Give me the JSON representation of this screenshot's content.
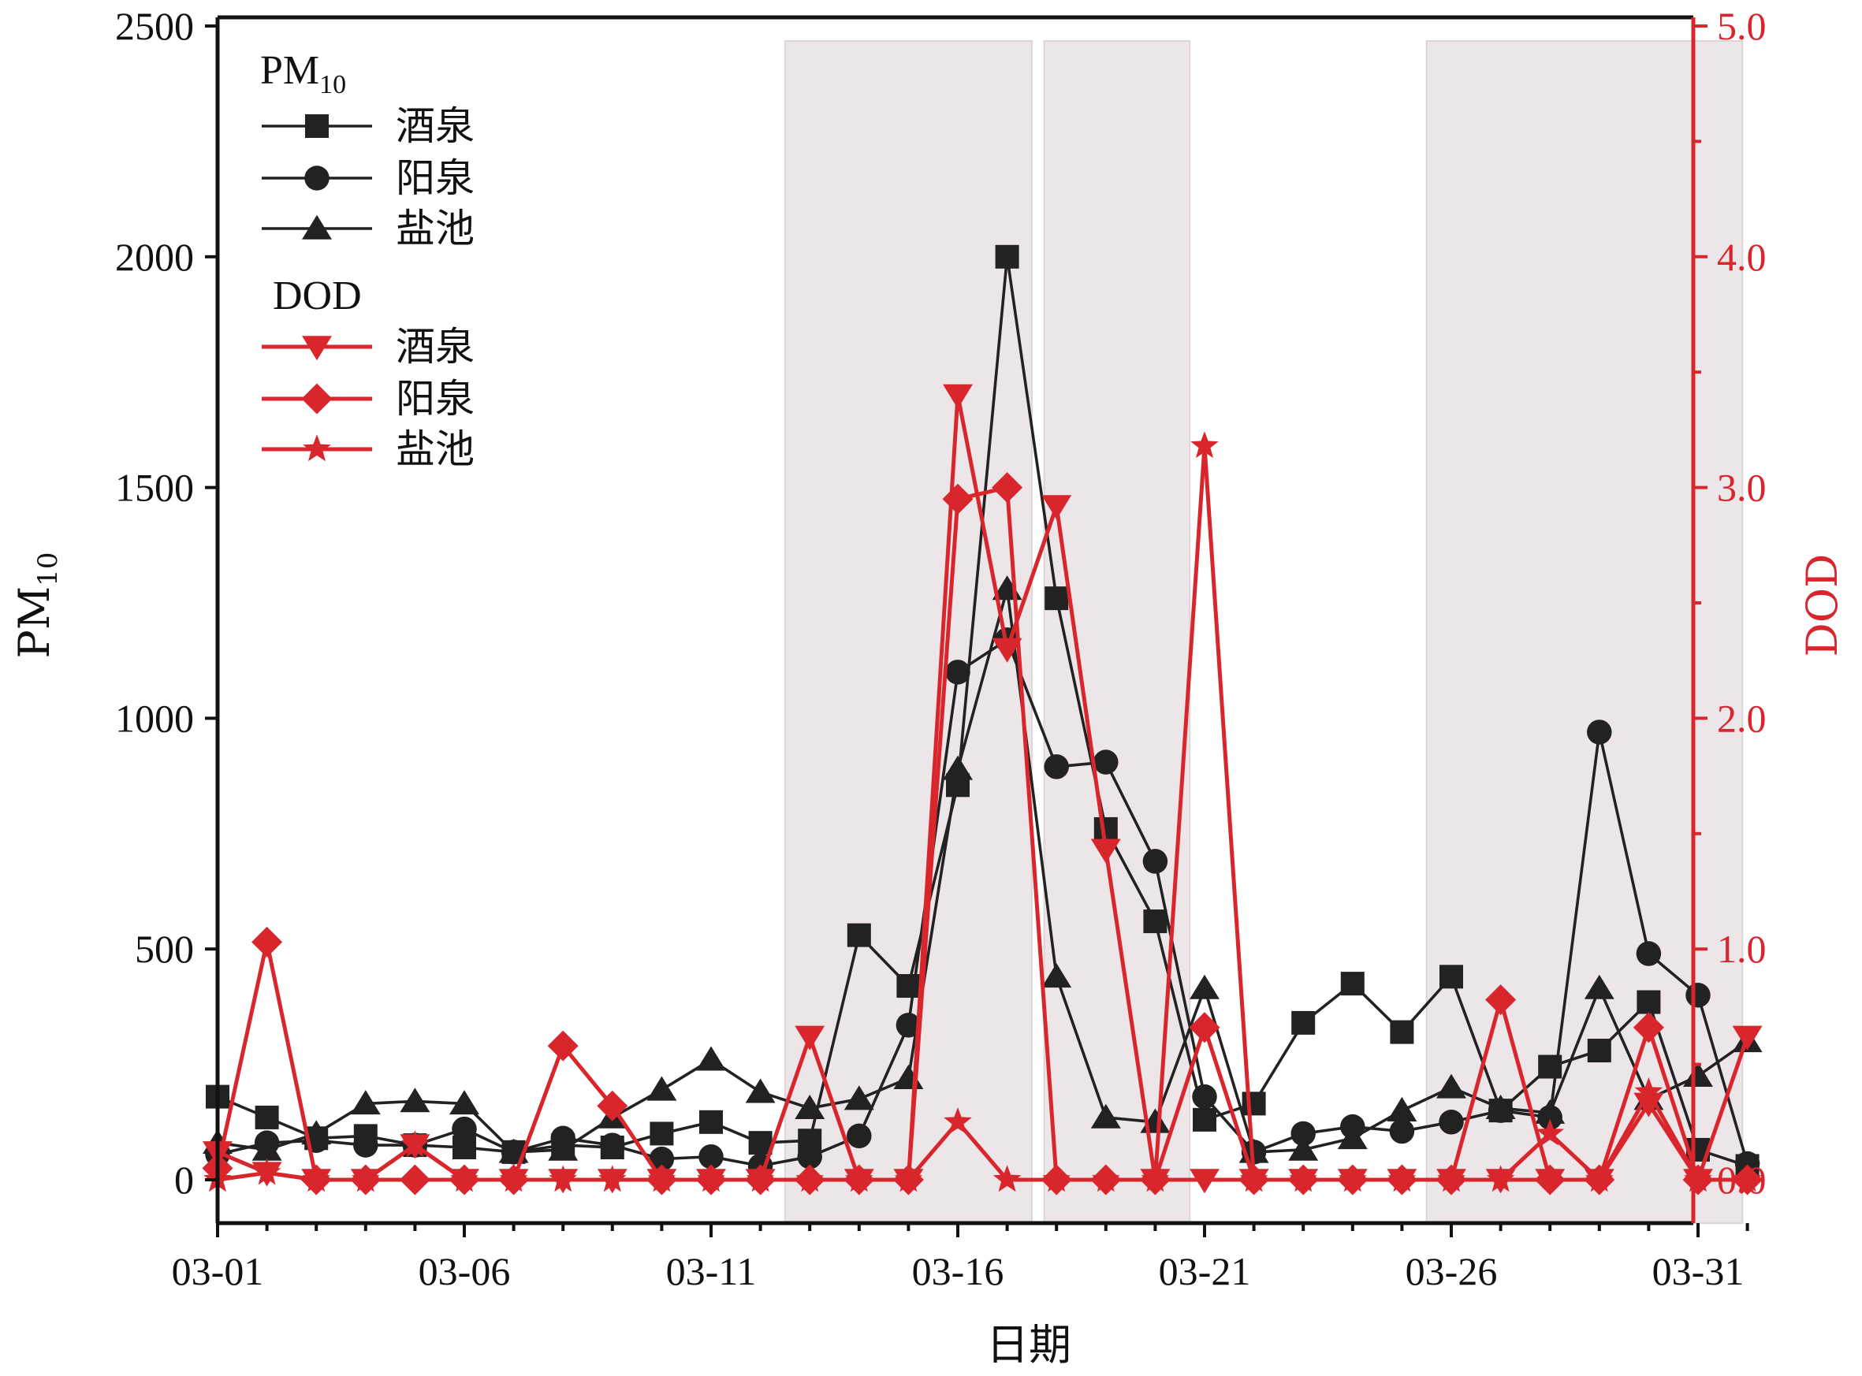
{
  "chart_data": {
    "type": "line",
    "x": [
      "03-01",
      "03-02",
      "03-03",
      "03-04",
      "03-05",
      "03-06",
      "03-07",
      "03-08",
      "03-09",
      "03-10",
      "03-11",
      "03-12",
      "03-13",
      "03-14",
      "03-15",
      "03-16",
      "03-17",
      "03-18",
      "03-19",
      "03-20",
      "03-21",
      "03-22",
      "03-23",
      "03-24",
      "03-25",
      "03-26",
      "03-27",
      "03-28",
      "03-29",
      "03-30",
      "03-31",
      "04-01"
    ],
    "x_tick_labels": [
      "03-01",
      "03-06",
      "03-11",
      "03-16",
      "03-21",
      "03-26",
      "03-31"
    ],
    "x_tick_index": [
      0,
      5,
      10,
      15,
      20,
      25,
      30
    ],
    "xlabel": "日期",
    "ylabel_left_base": "PM",
    "ylabel_left_sub": "10",
    "ylabel_right": "DOD",
    "ylim_left": [
      0,
      2500
    ],
    "ylim_right": [
      0.0,
      5.0
    ],
    "yticks_left": [
      "0",
      "500",
      "1000",
      "1500",
      "2000",
      "2500"
    ],
    "yticks_right": [
      "0.0",
      "1.0",
      "2.0",
      "3.0",
      "4.0",
      "5.0"
    ],
    "shaded_ranges": [
      [
        11.5,
        16.5
      ],
      [
        16.75,
        19.7
      ],
      [
        24.5,
        30.9
      ]
    ],
    "legend_placement": "top-left",
    "legend": {
      "pm_title_base": "PM",
      "pm_title_sub": "10",
      "dod_title": "DOD"
    },
    "colors": {
      "pm": "#222222",
      "dod": "#d9262c",
      "shade": "#ece6e8"
    },
    "series": [
      {
        "name": "酒泉",
        "group": "PM10",
        "axis": "left",
        "marker": "square",
        "values": [
          180,
          135,
          90,
          95,
          75,
          70,
          60,
          75,
          70,
          100,
          125,
          80,
          85,
          530,
          420,
          855,
          2000,
          1260,
          760,
          560,
          130,
          165,
          340,
          425,
          320,
          440,
          150,
          245,
          280,
          385,
          65,
          30
        ]
      },
      {
        "name": "阳泉",
        "group": "PM10",
        "axis": "left",
        "marker": "circle",
        "values": [
          55,
          80,
          85,
          75,
          75,
          110,
          60,
          90,
          75,
          45,
          50,
          30,
          50,
          95,
          335,
          1100,
          1170,
          895,
          905,
          690,
          180,
          60,
          100,
          115,
          105,
          125,
          150,
          135,
          970,
          490,
          400,
          35
        ]
      },
      {
        "name": "盐池",
        "group": "PM10",
        "axis": "left",
        "marker": "triangle",
        "values": [
          80,
          65,
          100,
          165,
          170,
          165,
          60,
          65,
          135,
          195,
          260,
          190,
          155,
          175,
          220,
          890,
          1280,
          440,
          135,
          125,
          415,
          60,
          65,
          90,
          150,
          200,
          155,
          145,
          415,
          175,
          225,
          300
        ]
      },
      {
        "name": "酒泉",
        "group": "DOD",
        "axis": "right",
        "marker": "triangle-down",
        "values": [
          0.12,
          0.03,
          0.0,
          0.0,
          0.15,
          0.0,
          0.0,
          0.0,
          0.0,
          0.0,
          0.0,
          0.0,
          0.62,
          0.0,
          0.0,
          3.4,
          2.3,
          2.92,
          1.43,
          0.0,
          0.0,
          0.0,
          0.0,
          0.0,
          0.0,
          0.0,
          0.0,
          0.0,
          0.0,
          0.33,
          0.0,
          0.62
        ]
      },
      {
        "name": "阳泉",
        "group": "DOD",
        "axis": "right",
        "marker": "diamond",
        "values": [
          0.05,
          1.03,
          0.0,
          0.0,
          0.0,
          0.0,
          0.0,
          0.58,
          0.32,
          0.0,
          0.0,
          0.0,
          0.0,
          0.0,
          0.0,
          2.95,
          3.0,
          0.0,
          0.0,
          0.0,
          0.66,
          0.0,
          0.0,
          0.0,
          0.0,
          0.0,
          0.78,
          0.0,
          0.0,
          0.66,
          0.0,
          0.0
        ]
      },
      {
        "name": "盐池",
        "group": "DOD",
        "axis": "right",
        "marker": "star",
        "values": [
          0.0,
          0.03,
          0.0,
          0.0,
          0.15,
          0.0,
          0.0,
          0.0,
          0.0,
          0.0,
          0.0,
          0.0,
          0.0,
          0.0,
          0.0,
          0.25,
          0.0,
          0.0,
          0.0,
          0.0,
          3.18,
          0.0,
          0.0,
          0.0,
          0.0,
          0.0,
          0.0,
          0.2,
          0.0,
          0.38,
          0.0,
          0.0
        ]
      }
    ]
  }
}
